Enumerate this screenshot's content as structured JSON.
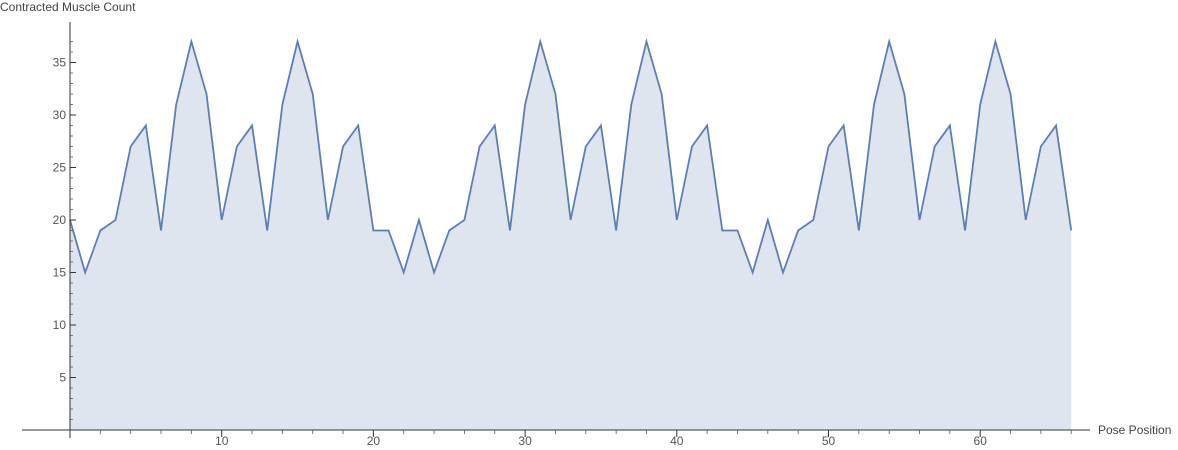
{
  "chart_data": {
    "type": "area",
    "xlabel": "Pose Position",
    "ylabel": "Contracted Muscle Count",
    "xlim": [
      0,
      66
    ],
    "ylim": [
      0,
      38
    ],
    "x_ticks": [
      10,
      20,
      30,
      40,
      50,
      60
    ],
    "y_ticks": [
      5,
      10,
      15,
      20,
      25,
      30,
      35
    ],
    "grid": false,
    "colors": {
      "line": "#5b7fb5",
      "fill": "#dfe5ef"
    },
    "series": [
      {
        "x": [
          0,
          1,
          2,
          3,
          4,
          5,
          6,
          7,
          8,
          9,
          10,
          11,
          12,
          13,
          14,
          15,
          16,
          17,
          18,
          19,
          20,
          21,
          22,
          23,
          24,
          25,
          26,
          27,
          28,
          29,
          30,
          31,
          32,
          33,
          34,
          35,
          36,
          37,
          38,
          39,
          40,
          41,
          42,
          43,
          44,
          45,
          46,
          47,
          48,
          49,
          50,
          51,
          52,
          53,
          54,
          55,
          56,
          57,
          58,
          59,
          60,
          61,
          62,
          63,
          64,
          65,
          66
        ],
        "values": [
          20,
          15,
          19,
          20,
          27,
          29,
          19,
          31,
          37,
          32,
          20,
          27,
          29,
          19,
          31,
          37,
          32,
          20,
          27,
          29,
          19,
          19,
          15,
          20,
          15,
          19,
          20,
          27,
          29,
          19,
          31,
          37,
          32,
          20,
          27,
          29,
          19,
          31,
          37,
          32,
          20,
          27,
          29,
          19,
          19,
          15,
          20,
          15,
          19,
          20,
          27,
          29,
          19,
          31,
          37,
          32,
          20,
          27,
          29,
          19,
          31,
          37,
          32,
          20,
          27,
          29,
          19
        ]
      }
    ]
  }
}
